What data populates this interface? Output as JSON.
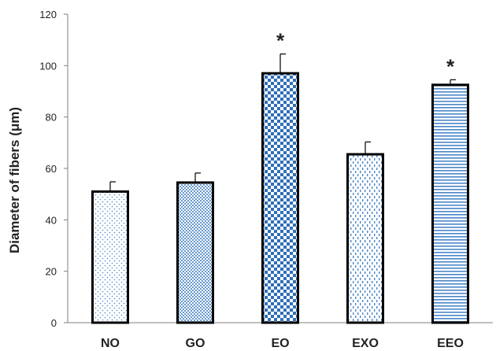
{
  "chart_data": {
    "type": "bar",
    "ylabel": "Diameter of fibers (μm)",
    "xlabel": "",
    "categories": [
      "NO",
      "GO",
      "EO",
      "EXO",
      "EEO"
    ],
    "values": [
      51,
      54.5,
      97,
      65.5,
      92.5
    ],
    "errors": [
      3.8,
      3.7,
      7.5,
      4.8,
      2
    ],
    "annotations": [
      "",
      "",
      "*",
      "",
      "*"
    ],
    "ylim": [
      0,
      120
    ],
    "yticks": [
      0,
      20,
      40,
      60,
      80,
      100,
      120
    ],
    "grid": false,
    "legend": "none",
    "colors": {
      "bar_outline": "#000000",
      "pattern": "#4a86c8",
      "axis": "#7f7f7f"
    },
    "bar_patterns": [
      "sparse-dots",
      "dense-dots",
      "checker",
      "dashes-vertical",
      "horizontal-lines"
    ]
  }
}
